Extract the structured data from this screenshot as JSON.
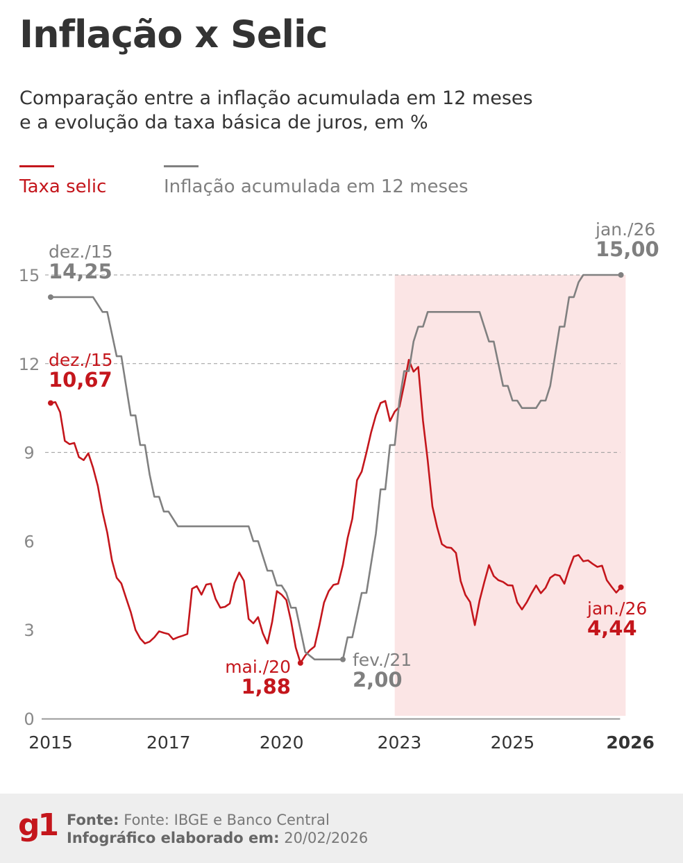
{
  "title": "Inflação x Selic",
  "subtitle": "Comparação entre a inflação acumulada em 12 meses e a evolução da taxa básica de juros, em %",
  "legend": [
    {
      "label": "Taxa selic",
      "color": "#c4161c"
    },
    {
      "label": "Inflação acumulada em 12 meses",
      "color": "#808080"
    }
  ],
  "footer": {
    "logo": "g1",
    "source_label": "Fonte:",
    "source_value": "Fonte: IBGE e Banco Central",
    "date_label": "Infográfico elaborado em:",
    "date_value": "20/02/2026"
  },
  "annotations": {
    "gray_start": {
      "date": "dez./15",
      "value": "14,25"
    },
    "gray_end": {
      "date": "jan./26",
      "value": "15,00"
    },
    "gray_min": {
      "date": "fev./21",
      "value": "2,00"
    },
    "red_start": {
      "date": "dez./15",
      "value": "10,67"
    },
    "red_min": {
      "date": "mai./20",
      "value": "1,88"
    },
    "red_end": {
      "date": "jan./26",
      "value": "4,44"
    }
  },
  "chart_data": {
    "type": "line",
    "title": "Inflação x Selic",
    "ylim": [
      0,
      15
    ],
    "yticks": [
      0,
      3,
      6,
      9,
      12,
      15
    ],
    "grid": "dashed horizontal at 9, 12, 15",
    "x_axis_start": "2015-12",
    "xticks": [
      {
        "label": "2015",
        "at": "2015-12"
      },
      {
        "label": "2017",
        "at": "2018-01"
      },
      {
        "label": "2020",
        "at": "2020-01"
      },
      {
        "label": "2023",
        "at": "2022-02"
      },
      {
        "label": "2025",
        "at": "2024-02"
      },
      {
        "label": "2026",
        "at": "2026-03",
        "bold": true
      }
    ],
    "shaded_region": {
      "from": "2022-01",
      "to": "2026-02",
      "color": "#fbe5e5"
    },
    "legend_placement": "top-left",
    "series": [
      {
        "name": "Taxa selic",
        "color": "#c4161c",
        "points": [
          [
            "2015-12",
            10.67
          ],
          [
            "2016-01",
            10.7
          ],
          [
            "2016-02",
            10.36
          ],
          [
            "2016-03",
            9.39
          ],
          [
            "2016-04",
            9.28
          ],
          [
            "2016-05",
            9.32
          ],
          [
            "2016-06",
            8.84
          ],
          [
            "2016-07",
            8.74
          ],
          [
            "2016-08",
            8.97
          ],
          [
            "2016-09",
            8.48
          ],
          [
            "2016-10",
            7.87
          ],
          [
            "2016-11",
            6.99
          ],
          [
            "2016-12",
            6.29
          ],
          [
            "2017-01",
            5.35
          ],
          [
            "2017-02",
            4.76
          ],
          [
            "2017-03",
            4.57
          ],
          [
            "2017-04",
            4.08
          ],
          [
            "2017-05",
            3.6
          ],
          [
            "2017-06",
            3.0
          ],
          [
            "2017-07",
            2.71
          ],
          [
            "2017-08",
            2.54
          ],
          [
            "2017-09",
            2.6
          ],
          [
            "2017-10",
            2.75
          ],
          [
            "2017-11",
            2.95
          ],
          [
            "2017-12",
            2.9
          ],
          [
            "2018-01",
            2.86
          ],
          [
            "2018-02",
            2.68
          ],
          [
            "2018-03",
            2.75
          ],
          [
            "2018-04",
            2.8
          ],
          [
            "2018-05",
            2.86
          ],
          [
            "2018-06",
            4.39
          ],
          [
            "2018-07",
            4.48
          ],
          [
            "2018-08",
            4.19
          ],
          [
            "2018-09",
            4.53
          ],
          [
            "2018-10",
            4.56
          ],
          [
            "2018-11",
            4.05
          ],
          [
            "2018-12",
            3.75
          ],
          [
            "2019-01",
            3.78
          ],
          [
            "2019-02",
            3.89
          ],
          [
            "2019-03",
            4.58
          ],
          [
            "2019-04",
            4.94
          ],
          [
            "2019-05",
            4.66
          ],
          [
            "2019-06",
            3.37
          ],
          [
            "2019-07",
            3.22
          ],
          [
            "2019-08",
            3.43
          ],
          [
            "2019-09",
            2.89
          ],
          [
            "2019-10",
            2.54
          ],
          [
            "2019-11",
            3.27
          ],
          [
            "2019-12",
            4.31
          ],
          [
            "2020-01",
            4.19
          ],
          [
            "2020-02",
            4.01
          ],
          [
            "2020-03",
            3.3
          ],
          [
            "2020-04",
            2.4
          ],
          [
            "2020-05",
            1.88
          ],
          [
            "2020-06",
            2.13
          ],
          [
            "2020-07",
            2.31
          ],
          [
            "2020-08",
            2.44
          ],
          [
            "2020-09",
            3.14
          ],
          [
            "2020-10",
            3.92
          ],
          [
            "2020-11",
            4.31
          ],
          [
            "2020-12",
            4.52
          ],
          [
            "2021-01",
            4.56
          ],
          [
            "2021-02",
            5.2
          ],
          [
            "2021-03",
            6.1
          ],
          [
            "2021-04",
            6.76
          ],
          [
            "2021-05",
            8.06
          ],
          [
            "2021-06",
            8.35
          ],
          [
            "2021-07",
            8.99
          ],
          [
            "2021-08",
            9.68
          ],
          [
            "2021-09",
            10.25
          ],
          [
            "2021-10",
            10.67
          ],
          [
            "2021-11",
            10.74
          ],
          [
            "2021-12",
            10.06
          ],
          [
            "2022-01",
            10.38
          ],
          [
            "2022-02",
            10.54
          ],
          [
            "2022-03",
            11.3
          ],
          [
            "2022-04",
            12.13
          ],
          [
            "2022-05",
            11.73
          ],
          [
            "2022-06",
            11.89
          ],
          [
            "2022-07",
            10.07
          ],
          [
            "2022-08",
            8.73
          ],
          [
            "2022-09",
            7.17
          ],
          [
            "2022-10",
            6.47
          ],
          [
            "2022-11",
            5.9
          ],
          [
            "2022-12",
            5.79
          ],
          [
            "2023-01",
            5.77
          ],
          [
            "2023-02",
            5.6
          ],
          [
            "2023-03",
            4.65
          ],
          [
            "2023-04",
            4.18
          ],
          [
            "2023-05",
            3.94
          ],
          [
            "2023-06",
            3.16
          ],
          [
            "2023-07",
            3.99
          ],
          [
            "2023-08",
            4.61
          ],
          [
            "2023-09",
            5.19
          ],
          [
            "2023-10",
            4.82
          ],
          [
            "2023-11",
            4.68
          ],
          [
            "2023-12",
            4.62
          ],
          [
            "2024-01",
            4.51
          ],
          [
            "2024-02",
            4.5
          ],
          [
            "2024-03",
            3.93
          ],
          [
            "2024-04",
            3.69
          ],
          [
            "2024-05",
            3.93
          ],
          [
            "2024-06",
            4.23
          ],
          [
            "2024-07",
            4.5
          ],
          [
            "2024-08",
            4.24
          ],
          [
            "2024-09",
            4.42
          ],
          [
            "2024-10",
            4.76
          ],
          [
            "2024-11",
            4.87
          ],
          [
            "2024-12",
            4.83
          ],
          [
            "2025-01",
            4.56
          ],
          [
            "2025-02",
            5.06
          ],
          [
            "2025-03",
            5.48
          ],
          [
            "2025-04",
            5.53
          ],
          [
            "2025-05",
            5.32
          ],
          [
            "2025-06",
            5.35
          ],
          [
            "2025-07",
            5.23
          ],
          [
            "2025-08",
            5.13
          ],
          [
            "2025-09",
            5.17
          ],
          [
            "2025-10",
            4.68
          ],
          [
            "2025-11",
            4.46
          ],
          [
            "2025-12",
            4.26
          ],
          [
            "2026-01",
            4.44
          ]
        ]
      },
      {
        "name": "Inflação acumulada em 12 meses",
        "color": "#808080",
        "step": true,
        "points": [
          [
            "2015-12",
            14.25
          ],
          [
            "2016-09",
            14.25
          ],
          [
            "2016-10",
            14.0
          ],
          [
            "2016-11",
            13.75
          ],
          [
            "2016-12",
            13.75
          ],
          [
            "2017-02",
            12.25
          ],
          [
            "2017-03",
            12.25
          ],
          [
            "2017-05",
            10.25
          ],
          [
            "2017-06",
            10.25
          ],
          [
            "2017-07",
            9.25
          ],
          [
            "2017-08",
            9.25
          ],
          [
            "2017-09",
            8.25
          ],
          [
            "2017-10",
            7.5
          ],
          [
            "2017-11",
            7.5
          ],
          [
            "2017-12",
            7.0
          ],
          [
            "2018-01",
            7.0
          ],
          [
            "2018-03",
            6.5
          ],
          [
            "2019-06",
            6.5
          ],
          [
            "2019-07",
            6.0
          ],
          [
            "2019-08",
            6.0
          ],
          [
            "2019-10",
            5.0
          ],
          [
            "2019-11",
            5.0
          ],
          [
            "2019-12",
            4.5
          ],
          [
            "2020-01",
            4.5
          ],
          [
            "2020-02",
            4.25
          ],
          [
            "2020-03",
            3.75
          ],
          [
            "2020-04",
            3.75
          ],
          [
            "2020-06",
            2.25
          ],
          [
            "2020-08",
            2.0
          ],
          [
            "2021-02",
            2.0
          ],
          [
            "2021-03",
            2.75
          ],
          [
            "2021-04",
            2.75
          ],
          [
            "2021-05",
            3.5
          ],
          [
            "2021-06",
            4.25
          ],
          [
            "2021-07",
            4.25
          ],
          [
            "2021-09",
            6.25
          ],
          [
            "2021-10",
            7.75
          ],
          [
            "2021-11",
            7.75
          ],
          [
            "2021-12",
            9.25
          ],
          [
            "2022-01",
            9.25
          ],
          [
            "2022-02",
            10.75
          ],
          [
            "2022-03",
            11.75
          ],
          [
            "2022-04",
            11.75
          ],
          [
            "2022-05",
            12.75
          ],
          [
            "2022-06",
            13.25
          ],
          [
            "2022-07",
            13.25
          ],
          [
            "2022-08",
            13.75
          ],
          [
            "2023-07",
            13.75
          ],
          [
            "2023-09",
            12.75
          ],
          [
            "2023-10",
            12.75
          ],
          [
            "2023-12",
            11.25
          ],
          [
            "2024-01",
            11.25
          ],
          [
            "2024-02",
            10.75
          ],
          [
            "2024-03",
            10.75
          ],
          [
            "2024-04",
            10.5
          ],
          [
            "2024-07",
            10.5
          ],
          [
            "2024-08",
            10.75
          ],
          [
            "2024-09",
            10.75
          ],
          [
            "2024-10",
            11.25
          ],
          [
            "2024-12",
            13.25
          ],
          [
            "2025-01",
            13.25
          ],
          [
            "2025-02",
            14.25
          ],
          [
            "2025-03",
            14.25
          ],
          [
            "2025-04",
            14.75
          ],
          [
            "2025-05",
            15.0
          ],
          [
            "2026-01",
            15.0
          ]
        ]
      }
    ]
  }
}
